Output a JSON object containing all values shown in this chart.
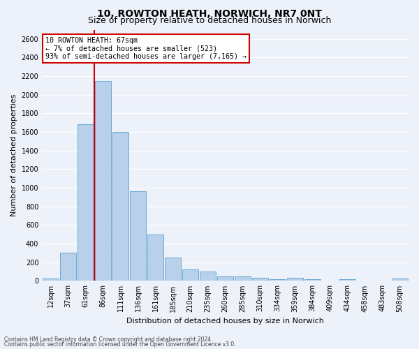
{
  "title": "10, ROWTON HEATH, NORWICH, NR7 0NT",
  "subtitle": "Size of property relative to detached houses in Norwich",
  "xlabel": "Distribution of detached houses by size in Norwich",
  "ylabel": "Number of detached properties",
  "categories": [
    "12sqm",
    "37sqm",
    "61sqm",
    "86sqm",
    "111sqm",
    "136sqm",
    "161sqm",
    "185sqm",
    "210sqm",
    "235sqm",
    "260sqm",
    "285sqm",
    "310sqm",
    "334sqm",
    "359sqm",
    "384sqm",
    "409sqm",
    "434sqm",
    "458sqm",
    "483sqm",
    "508sqm"
  ],
  "values": [
    25,
    300,
    1680,
    2150,
    1600,
    960,
    500,
    250,
    120,
    100,
    50,
    50,
    35,
    20,
    30,
    20,
    5,
    20,
    5,
    5,
    25
  ],
  "bar_color": "#b8d0ea",
  "bar_edge_color": "#6aaad4",
  "vline_color": "#cc0000",
  "vline_index": 2.5,
  "annotation_title": "10 ROWTON HEATH: 67sqm",
  "annotation_line1": "← 7% of detached houses are smaller (523)",
  "annotation_line2": "93% of semi-detached houses are larger (7,165) →",
  "ylim": [
    0,
    2700
  ],
  "yticks": [
    0,
    200,
    400,
    600,
    800,
    1000,
    1200,
    1400,
    1600,
    1800,
    2000,
    2200,
    2400,
    2600
  ],
  "footer1": "Contains HM Land Registry data © Crown copyright and database right 2024.",
  "footer2": "Contains public sector information licensed under the Open Government Licence v3.0.",
  "bg_color": "#edf1f9",
  "grid_color": "#ffffff",
  "annotation_box_color": "white",
  "annotation_box_edge": "#cc0000",
  "title_fontsize": 10,
  "label_fontsize": 8,
  "tick_fontsize": 7,
  "footer_fontsize": 5.5
}
